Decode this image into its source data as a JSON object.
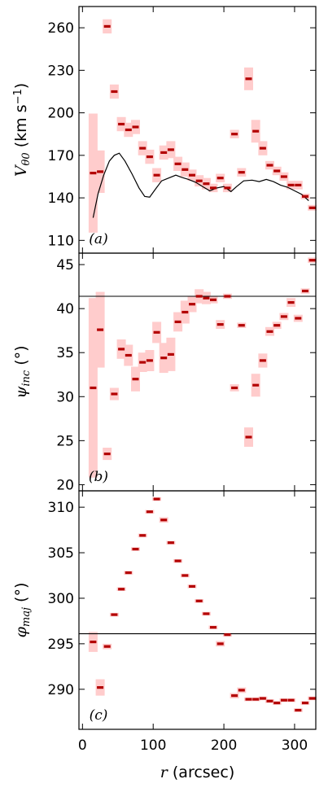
{
  "chart_data": [
    {
      "type": "scatter",
      "panel_label": "(a)",
      "ylabel": "V_{θ0} (km s^{-1})",
      "ylabel_parts": {
        "sym": "V",
        "sub": "θ0",
        "unit_pre": " (km s",
        "sup": "−1",
        "unit_post": ")"
      },
      "xlim": [
        -5,
        330
      ],
      "ylim": [
        101,
        275
      ],
      "yticks": [
        110,
        140,
        170,
        200,
        230,
        260
      ],
      "points": [
        {
          "x": 15,
          "y": 157.5,
          "err": 42
        },
        {
          "x": 25,
          "y": 158.5,
          "err": 15
        },
        {
          "x": 35,
          "y": 261,
          "err": 5
        },
        {
          "x": 45,
          "y": 215,
          "err": 5
        },
        {
          "x": 55,
          "y": 192,
          "err": 5
        },
        {
          "x": 65,
          "y": 188,
          "err": 5
        },
        {
          "x": 75,
          "y": 190,
          "err": 5
        },
        {
          "x": 85,
          "y": 175,
          "err": 5
        },
        {
          "x": 95,
          "y": 169,
          "err": 5
        },
        {
          "x": 105,
          "y": 156,
          "err": 5
        },
        {
          "x": 115,
          "y": 172,
          "err": 5
        },
        {
          "x": 125,
          "y": 174,
          "err": 6
        },
        {
          "x": 135,
          "y": 164,
          "err": 5
        },
        {
          "x": 145,
          "y": 160,
          "err": 5
        },
        {
          "x": 155,
          "y": 156,
          "err": 4
        },
        {
          "x": 165,
          "y": 152,
          "err": 4
        },
        {
          "x": 175,
          "y": 150,
          "err": 4
        },
        {
          "x": 185,
          "y": 147,
          "err": 3
        },
        {
          "x": 195,
          "y": 154,
          "err": 3
        },
        {
          "x": 205,
          "y": 147,
          "err": 3
        },
        {
          "x": 215,
          "y": 185,
          "err": 3
        },
        {
          "x": 225,
          "y": 158,
          "err": 3
        },
        {
          "x": 235,
          "y": 224,
          "err": 8
        },
        {
          "x": 245,
          "y": 187,
          "err": 8
        },
        {
          "x": 255,
          "y": 175,
          "err": 5
        },
        {
          "x": 265,
          "y": 163,
          "err": 3
        },
        {
          "x": 275,
          "y": 159,
          "err": 3
        },
        {
          "x": 285,
          "y": 155,
          "err": 3
        },
        {
          "x": 295,
          "y": 149,
          "err": 3
        },
        {
          "x": 305,
          "y": 149,
          "err": 3
        },
        {
          "x": 315,
          "y": 141,
          "err": 2
        },
        {
          "x": 325,
          "y": 133,
          "err": 2
        }
      ],
      "line": [
        [
          15,
          126
        ],
        [
          22,
          143
        ],
        [
          30,
          156
        ],
        [
          38,
          166
        ],
        [
          45,
          170
        ],
        [
          52,
          171.5
        ],
        [
          60,
          166
        ],
        [
          70,
          157
        ],
        [
          80,
          147
        ],
        [
          88,
          141
        ],
        [
          95,
          140.5
        ],
        [
          103,
          146
        ],
        [
          112,
          152
        ],
        [
          122,
          154
        ],
        [
          132,
          156
        ],
        [
          140,
          154.5
        ],
        [
          150,
          153
        ],
        [
          160,
          151
        ],
        [
          170,
          148
        ],
        [
          180,
          145
        ],
        [
          190,
          147
        ],
        [
          200,
          148
        ],
        [
          210,
          144.5
        ],
        [
          218,
          148
        ],
        [
          228,
          152
        ],
        [
          240,
          152.5
        ],
        [
          250,
          151.5
        ],
        [
          260,
          153
        ],
        [
          270,
          151.5
        ],
        [
          280,
          149
        ],
        [
          290,
          147.5
        ],
        [
          300,
          145
        ],
        [
          310,
          142.5
        ],
        [
          320,
          138
        ]
      ],
      "marker_color": "#b30000",
      "error_color": "#ffcccc",
      "line_color": "#000000"
    },
    {
      "type": "scatter",
      "panel_label": "(b)",
      "ylabel": "ψ_{inc} (°)",
      "ylabel_parts": {
        "sym": "ψ",
        "sub": "inc",
        "unit_pre": " (°)",
        "sup": "",
        "unit_post": ""
      },
      "xlim": [
        -5,
        330
      ],
      "ylim": [
        19.3,
        46.3
      ],
      "yticks": [
        20,
        25,
        30,
        35,
        40,
        45
      ],
      "hline": 41.4,
      "points": [
        {
          "x": 15,
          "y": 31,
          "err": 10.2
        },
        {
          "x": 25,
          "y": 37.6,
          "err": 4.3
        },
        {
          "x": 35,
          "y": 23.5,
          "err": 0.7
        },
        {
          "x": 45,
          "y": 30.3,
          "err": 0.7
        },
        {
          "x": 55,
          "y": 35.4,
          "err": 1.1
        },
        {
          "x": 65,
          "y": 34.7,
          "err": 1.2
        },
        {
          "x": 75,
          "y": 32,
          "err": 1.4
        },
        {
          "x": 85,
          "y": 33.9,
          "err": 1.1
        },
        {
          "x": 95,
          "y": 34.1,
          "err": 1.2
        },
        {
          "x": 105,
          "y": 37.3,
          "err": 1.2
        },
        {
          "x": 115,
          "y": 34.4,
          "err": 1.7
        },
        {
          "x": 125,
          "y": 34.8,
          "err": 1.9
        },
        {
          "x": 135,
          "y": 38.5,
          "err": 1.1
        },
        {
          "x": 145,
          "y": 39.6,
          "err": 1.3
        },
        {
          "x": 155,
          "y": 40.5,
          "err": 0.9
        },
        {
          "x": 165,
          "y": 41.4,
          "err": 0.8
        },
        {
          "x": 175,
          "y": 41.2,
          "err": 0.7
        },
        {
          "x": 185,
          "y": 41,
          "err": 0.4
        },
        {
          "x": 195,
          "y": 38.2,
          "err": 0.5
        },
        {
          "x": 205,
          "y": 41.4,
          "err": 0.3
        },
        {
          "x": 215,
          "y": 31,
          "err": 0.4
        },
        {
          "x": 225,
          "y": 38.1,
          "err": 0.3
        },
        {
          "x": 235,
          "y": 25.4,
          "err": 1.1
        },
        {
          "x": 245,
          "y": 31.3,
          "err": 1.3
        },
        {
          "x": 255,
          "y": 34.1,
          "err": 0.8
        },
        {
          "x": 265,
          "y": 37.4,
          "err": 0.5
        },
        {
          "x": 275,
          "y": 38.1,
          "err": 0.4
        },
        {
          "x": 285,
          "y": 39.1,
          "err": 0.4
        },
        {
          "x": 295,
          "y": 40.7,
          "err": 0.5
        },
        {
          "x": 305,
          "y": 38.9,
          "err": 0.4
        },
        {
          "x": 315,
          "y": 42,
          "err": 0.3
        },
        {
          "x": 325,
          "y": 45.5,
          "err": 0.3
        }
      ],
      "marker_color": "#b30000",
      "error_color": "#ffcccc",
      "line_color": "#000000"
    },
    {
      "type": "scatter",
      "panel_label": "(c)",
      "ylabel": "φ_{maj} (°)",
      "ylabel_parts": {
        "sym": "φ",
        "sub": "maj",
        "unit_pre": " (°)",
        "sup": "",
        "unit_post": ""
      },
      "xlabel": "r (arcsec)",
      "xlabel_parts": {
        "sym": "r",
        "unit": " (arcsec)"
      },
      "xlim": [
        -5,
        330
      ],
      "ylim": [
        285.6,
        311.8
      ],
      "yticks": [
        290,
        295,
        300,
        305,
        310
      ],
      "xticks": [
        0,
        100,
        200,
        300
      ],
      "hline": 296.1,
      "points": [
        {
          "x": 15,
          "y": 295.2,
          "err": 1.1
        },
        {
          "x": 25,
          "y": 290.2,
          "err": 0.9
        },
        {
          "x": 35,
          "y": 294.7,
          "err": 0.3
        },
        {
          "x": 45,
          "y": 298.2,
          "err": 0.2
        },
        {
          "x": 55,
          "y": 301,
          "err": 0.2
        },
        {
          "x": 65,
          "y": 302.8,
          "err": 0.2
        },
        {
          "x": 75,
          "y": 305.4,
          "err": 0.2
        },
        {
          "x": 85,
          "y": 306.9,
          "err": 0.2
        },
        {
          "x": 95,
          "y": 309.5,
          "err": 0.2
        },
        {
          "x": 105,
          "y": 310.9,
          "err": 0.2
        },
        {
          "x": 115,
          "y": 308.6,
          "err": 0.3
        },
        {
          "x": 125,
          "y": 306.1,
          "err": 0.2
        },
        {
          "x": 135,
          "y": 304.1,
          "err": 0.2
        },
        {
          "x": 145,
          "y": 302.5,
          "err": 0.2
        },
        {
          "x": 155,
          "y": 301.3,
          "err": 0.2
        },
        {
          "x": 165,
          "y": 299.7,
          "err": 0.2
        },
        {
          "x": 175,
          "y": 298.3,
          "err": 0.2
        },
        {
          "x": 185,
          "y": 296.8,
          "err": 0.2
        },
        {
          "x": 195,
          "y": 295,
          "err": 0.3
        },
        {
          "x": 205,
          "y": 296,
          "err": 0.2
        },
        {
          "x": 215,
          "y": 289.3,
          "err": 0.3
        },
        {
          "x": 225,
          "y": 289.9,
          "err": 0.3
        },
        {
          "x": 235,
          "y": 288.9,
          "err": 0.2
        },
        {
          "x": 245,
          "y": 288.9,
          "err": 0.2
        },
        {
          "x": 255,
          "y": 289,
          "err": 0.2
        },
        {
          "x": 265,
          "y": 288.7,
          "err": 0.2
        },
        {
          "x": 275,
          "y": 288.5,
          "err": 0.2
        },
        {
          "x": 285,
          "y": 288.8,
          "err": 0.2
        },
        {
          "x": 295,
          "y": 288.8,
          "err": 0.2
        },
        {
          "x": 305,
          "y": 287.7,
          "err": 0.2
        },
        {
          "x": 315,
          "y": 288.5,
          "err": 0.2
        },
        {
          "x": 325,
          "y": 289,
          "err": 0.2
        }
      ],
      "marker_color": "#b30000",
      "error_color": "#ffcccc",
      "line_color": "#000000"
    }
  ]
}
